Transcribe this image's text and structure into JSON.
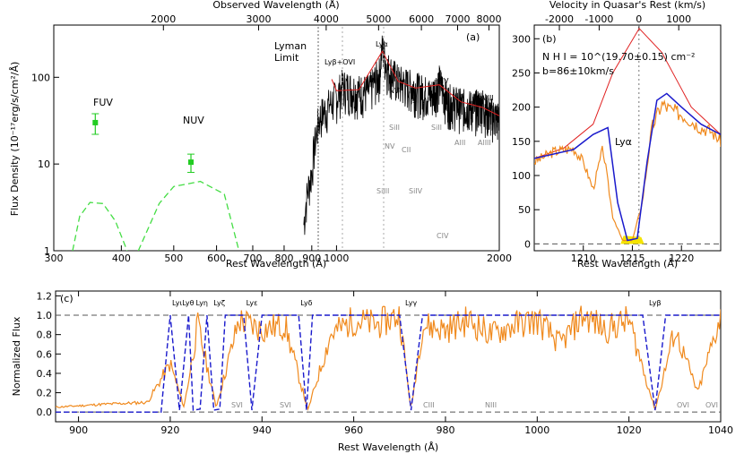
{
  "chart_data": [
    {
      "panel_label": "(a)",
      "type": "line",
      "xlabel": "Rest Wavelength (Å)",
      "ylabel": "Flux Density (10⁻¹⁷erg/s/cm²/Å)",
      "top_xlabel": "Observed Wavelength (Å)",
      "x_scale": "log",
      "y_scale": "log",
      "xlim": [
        300,
        2000
      ],
      "ylim": [
        1,
        400
      ],
      "x_ticks": [
        "300",
        "400",
        "500",
        "600",
        "700",
        "800",
        "900",
        "1000",
        "2000"
      ],
      "top_ticks": [
        "2000",
        "3000",
        "4000",
        "5000",
        "6000",
        "7000",
        "8000"
      ],
      "y_ticks": [
        "1",
        "10",
        "100"
      ],
      "annotations": {
        "lyman_limit": [
          "Lyman",
          "Limit"
        ],
        "fuv": "FUV",
        "nuv": "NUV",
        "lines": [
          "Lyβ+OVI",
          "Lyα",
          "NV",
          "SiIV",
          "CIV",
          "AlIII"
        ],
        "absorption": [
          "SiII",
          "NV",
          "CII",
          "SiII",
          "SiIII",
          "SiIV",
          "CIV",
          "AlII",
          "AlIII",
          "SiII"
        ]
      },
      "series": [
        {
          "name": "FUV",
          "x": [
            358
          ],
          "y": [
            30
          ],
          "yerr": [
            8
          ],
          "color": "#22cc22"
        },
        {
          "name": "NUV",
          "x": [
            538
          ],
          "y": [
            10.5
          ],
          "yerr": [
            2.5
          ],
          "color": "#22cc22"
        },
        {
          "name": "filter_fuv",
          "x": [
            325,
            335,
            350,
            370,
            390,
            410
          ],
          "y": [
            1,
            2.5,
            3.6,
            3.5,
            2.2,
            1
          ],
          "color": "#44dd44"
        },
        {
          "name": "filter_nuv",
          "x": [
            430,
            470,
            500,
            560,
            620,
            660
          ],
          "y": [
            1,
            3.5,
            5.5,
            6.3,
            4.5,
            1
          ],
          "color": "#44dd44"
        },
        {
          "name": "spectrum",
          "x": [
            870,
            880,
            900,
            915,
            930,
            960,
            1000,
            1025,
            1060,
            1100,
            1150,
            1200,
            1216,
            1240,
            1300,
            1400,
            1500,
            1549,
            1600,
            1700,
            1800,
            1860,
            1900,
            2000
          ],
          "y": [
            2,
            4,
            8,
            20,
            35,
            45,
            60,
            80,
            75,
            70,
            70,
            110,
            220,
            130,
            90,
            75,
            62,
            90,
            55,
            48,
            45,
            50,
            40,
            33
          ],
          "color": "#000000"
        },
        {
          "name": "continuum_model",
          "x": [
            1000,
            1100,
            1216,
            1300,
            1400,
            1549,
            1700,
            1860,
            2000
          ],
          "y": [
            70,
            72,
            200,
            90,
            75,
            82,
            52,
            45,
            36
          ],
          "color": "#e02020"
        }
      ]
    },
    {
      "panel_label": "(b)",
      "type": "line",
      "xlabel": "Rest Wavelength (Å)",
      "top_xlabel": "Velocity in Quasar's Rest (km/s)",
      "xlim": [
        1205,
        1224
      ],
      "ylim": [
        -10,
        320
      ],
      "x_ticks": [
        "1210",
        "1215",
        "1220"
      ],
      "top_ticks": [
        "-2000",
        "-1000",
        "0",
        "1000"
      ],
      "y_ticks": [
        "0",
        "50",
        "100",
        "150",
        "200",
        "250",
        "300"
      ],
      "annotations": {
        "nhi": "N H I = 10^(19.70±0.15) cm⁻²",
        "b": "b=86±10km/s",
        "line": "Lyα"
      },
      "series": [
        {
          "name": "intrinsic",
          "x": [
            1205,
            1208,
            1211,
            1213,
            1215.7,
            1218,
            1221,
            1224
          ],
          "y": [
            125,
            140,
            175,
            250,
            315,
            280,
            200,
            160
          ],
          "color": "#e02020"
        },
        {
          "name": "model",
          "x": [
            1205,
            1209,
            1211,
            1212.5,
            1213.5,
            1214.5,
            1215.5,
            1216.5,
            1217.5,
            1218.5,
            1220,
            1222,
            1224
          ],
          "y": [
            125,
            138,
            160,
            170,
            60,
            5,
            8,
            120,
            210,
            220,
            200,
            175,
            160
          ],
          "color": "#1a1acc"
        },
        {
          "name": "data",
          "x": [
            1205,
            1207,
            1209,
            1210,
            1211,
            1212,
            1213,
            1214,
            1215,
            1216,
            1217,
            1218,
            1219,
            1220,
            1221,
            1222,
            1223,
            1224
          ],
          "y": [
            120,
            135,
            140,
            120,
            80,
            140,
            40,
            5,
            5,
            60,
            170,
            205,
            195,
            190,
            180,
            170,
            165,
            150
          ],
          "color": "#f08a1e"
        }
      ]
    },
    {
      "panel_label": "(c)",
      "type": "line",
      "xlabel": "Rest Wavelength (Å)",
      "ylabel": "Normalized Flux",
      "xlim": [
        895,
        1040
      ],
      "ylim": [
        -0.1,
        1.25
      ],
      "x_ticks": [
        "900",
        "920",
        "940",
        "960",
        "980",
        "1000",
        "1020",
        "1040"
      ],
      "y_ticks": [
        "0.0",
        "0.2",
        "0.4",
        "0.6",
        "0.8",
        "1.0",
        "1.2"
      ],
      "annotations": {
        "lyman_series": [
          "Lyι",
          "Lyθ",
          "Lyη",
          "Lyζ",
          "Lyε",
          "Lyδ",
          "Lyγ",
          "Lyβ"
        ],
        "metals": [
          "SVI",
          "SVI",
          "CIII",
          "NIII",
          "OVI",
          "OVI"
        ]
      },
      "series": [
        {
          "name": "data",
          "x": [
            895,
            905,
            915,
            920,
            923,
            926,
            930,
            935,
            940,
            945,
            950,
            955,
            960,
            965,
            970,
            972.5,
            975,
            980,
            985,
            990,
            995,
            1000,
            1005,
            1010,
            1015,
            1020,
            1025.7,
            1030,
            1035,
            1040
          ],
          "y": [
            0.05,
            0.08,
            0.1,
            0.5,
            0.05,
            0.9,
            0.05,
            0.95,
            0.85,
            0.9,
            0.02,
            0.8,
            0.95,
            0.9,
            1.0,
            0.02,
            0.9,
            0.85,
            0.95,
            0.8,
            0.9,
            0.95,
            0.7,
            1.0,
            0.85,
            0.95,
            0.02,
            0.85,
            0.2,
            1.0
          ],
          "color": "#f08a1e"
        },
        {
          "name": "model",
          "x": [
            895,
            918,
            920,
            922,
            924,
            925,
            926.5,
            928,
            929.5,
            930.8,
            932,
            936,
            937.8,
            940,
            948,
            949.7,
            951,
            970,
            972.5,
            975,
            1023,
            1025.7,
            1028,
            1040
          ],
          "y": [
            0,
            0,
            1,
            0.02,
            1,
            0.02,
            0.03,
            1,
            0.02,
            0.03,
            1,
            1,
            0.02,
            1,
            1,
            0.02,
            1,
            1,
            0.02,
            1,
            1,
            0.02,
            1,
            1
          ],
          "color": "#1a1acc"
        }
      ]
    }
  ]
}
